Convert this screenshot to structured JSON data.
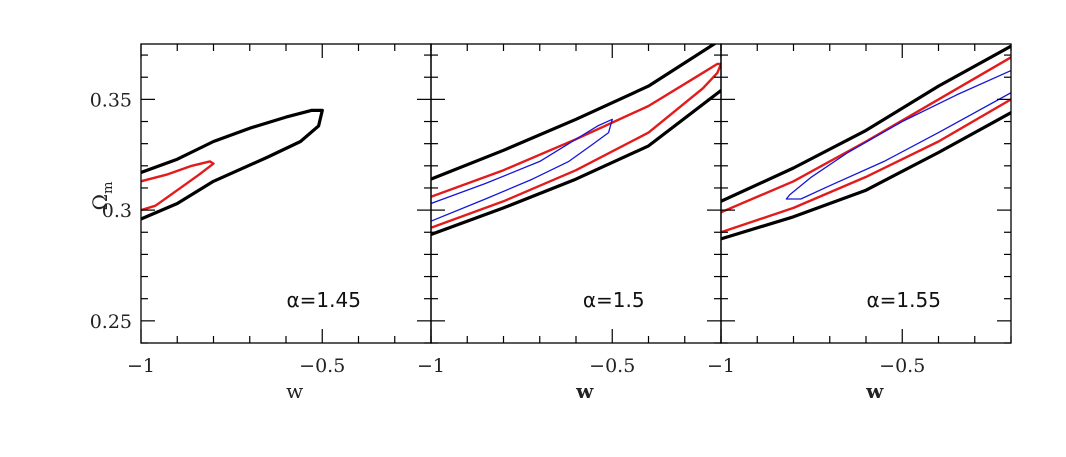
{
  "chart_data": {
    "type": "line",
    "colors": {
      "outer": "#000000",
      "middle": "#e21b1b",
      "inner": "#1616d8"
    },
    "xlabel": "w",
    "ylabel": "Ω",
    "ylabel_sub": "m",
    "xlim": [
      -1.0,
      -0.2
    ],
    "ylim": [
      0.24,
      0.375
    ],
    "x_ticks": [
      -1,
      -0.5
    ],
    "x_tick_labels": [
      "−1",
      "−0.5"
    ],
    "y_ticks": [
      0.25,
      0.3,
      0.35
    ],
    "y_tick_labels": [
      "0.25",
      "0.3",
      "0.35"
    ],
    "panels": [
      {
        "label": "α=1.45",
        "contours": [
          {
            "level": "outer",
            "points": [
              [
                -1.0,
                0.317
              ],
              [
                -0.9,
                0.323
              ],
              [
                -0.8,
                0.331
              ],
              [
                -0.7,
                0.337
              ],
              [
                -0.6,
                0.342
              ],
              [
                -0.53,
                0.345
              ],
              [
                -0.5,
                0.345
              ],
              [
                -0.51,
                0.338
              ],
              [
                -0.56,
                0.331
              ],
              [
                -0.65,
                0.324
              ],
              [
                -0.8,
                0.313
              ],
              [
                -0.9,
                0.303
              ],
              [
                -1.0,
                0.296
              ]
            ]
          },
          {
            "level": "middle",
            "points": [
              [
                -1.0,
                0.313
              ],
              [
                -0.93,
                0.316
              ],
              [
                -0.86,
                0.32
              ],
              [
                -0.81,
                0.322
              ],
              [
                -0.8,
                0.321
              ],
              [
                -0.84,
                0.316
              ],
              [
                -0.9,
                0.309
              ],
              [
                -0.96,
                0.302
              ],
              [
                -1.0,
                0.3
              ]
            ]
          }
        ]
      },
      {
        "label": "α=1.5",
        "contours": [
          {
            "level": "outer",
            "points": [
              [
                -1.0,
                0.314
              ],
              [
                -0.8,
                0.327
              ],
              [
                -0.6,
                0.341
              ],
              [
                -0.4,
                0.356
              ],
              [
                -0.2,
                0.377
              ]
            ]
          },
          {
            "level": "outer",
            "points": [
              [
                -1.0,
                0.289
              ],
              [
                -0.8,
                0.301
              ],
              [
                -0.6,
                0.314
              ],
              [
                -0.4,
                0.329
              ],
              [
                -0.2,
                0.354
              ]
            ]
          },
          {
            "level": "middle",
            "points": [
              [
                -1.0,
                0.306
              ],
              [
                -0.8,
                0.318
              ],
              [
                -0.6,
                0.332
              ],
              [
                -0.4,
                0.347
              ],
              [
                -0.25,
                0.362
              ],
              [
                -0.21,
                0.366
              ],
              [
                -0.2,
                0.366
              ]
            ]
          },
          {
            "level": "middle",
            "points": [
              [
                -1.0,
                0.292
              ],
              [
                -0.8,
                0.304
              ],
              [
                -0.6,
                0.318
              ],
              [
                -0.4,
                0.335
              ],
              [
                -0.25,
                0.355
              ],
              [
                -0.21,
                0.362
              ],
              [
                -0.2,
                0.366
              ]
            ]
          },
          {
            "level": "inner",
            "points": [
              [
                -1.0,
                0.303
              ],
              [
                -0.85,
                0.312
              ],
              [
                -0.7,
                0.322
              ],
              [
                -0.6,
                0.332
              ],
              [
                -0.54,
                0.338
              ],
              [
                -0.5,
                0.341
              ],
              [
                -0.51,
                0.335
              ],
              [
                -0.56,
                0.329
              ],
              [
                -0.62,
                0.322
              ],
              [
                -0.72,
                0.314
              ],
              [
                -0.85,
                0.305
              ],
              [
                -1.0,
                0.295
              ]
            ]
          }
        ]
      },
      {
        "label": "α=1.55",
        "contours": [
          {
            "level": "outer",
            "points": [
              [
                -1.0,
                0.304
              ],
              [
                -0.8,
                0.319
              ],
              [
                -0.6,
                0.336
              ],
              [
                -0.4,
                0.356
              ],
              [
                -0.2,
                0.374
              ]
            ]
          },
          {
            "level": "outer",
            "points": [
              [
                -1.0,
                0.287
              ],
              [
                -0.8,
                0.297
              ],
              [
                -0.6,
                0.309
              ],
              [
                -0.4,
                0.326
              ],
              [
                -0.2,
                0.344
              ]
            ]
          },
          {
            "level": "middle",
            "points": [
              [
                -1.0,
                0.299
              ],
              [
                -0.8,
                0.313
              ],
              [
                -0.6,
                0.331
              ],
              [
                -0.4,
                0.35
              ],
              [
                -0.2,
                0.369
              ]
            ]
          },
          {
            "level": "middle",
            "points": [
              [
                -1.0,
                0.29
              ],
              [
                -0.8,
                0.301
              ],
              [
                -0.6,
                0.315
              ],
              [
                -0.4,
                0.331
              ],
              [
                -0.2,
                0.35
              ]
            ]
          },
          {
            "level": "inner",
            "points": [
              [
                -0.2,
                0.363
              ],
              [
                -0.35,
                0.352
              ],
              [
                -0.5,
                0.34
              ],
              [
                -0.65,
                0.326
              ],
              [
                -0.75,
                0.315
              ],
              [
                -0.81,
                0.307
              ],
              [
                -0.82,
                0.305
              ],
              [
                -0.78,
                0.305
              ],
              [
                -0.7,
                0.311
              ],
              [
                -0.55,
                0.322
              ],
              [
                -0.4,
                0.335
              ],
              [
                -0.2,
                0.353
              ]
            ]
          }
        ]
      }
    ]
  }
}
